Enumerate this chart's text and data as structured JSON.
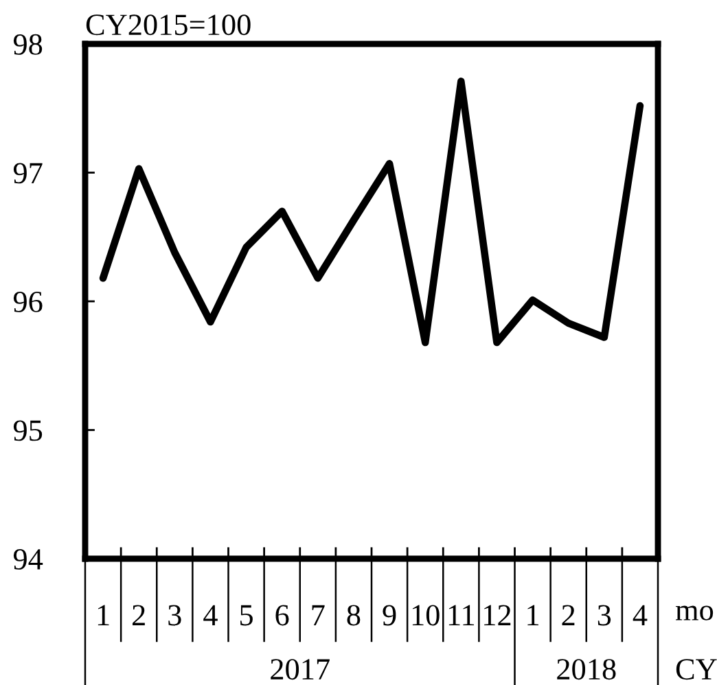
{
  "chart_data": {
    "type": "line",
    "categories": [
      "1",
      "2",
      "3",
      "4",
      "5",
      "6",
      "7",
      "8",
      "9",
      "10",
      "11",
      "12",
      "1",
      "2",
      "3",
      "4"
    ],
    "series": [
      {
        "color": "#000000",
        "values": [
          96.18,
          97.03,
          96.38,
          95.84,
          96.42,
          96.7,
          96.18,
          96.63,
          97.07,
          95.68,
          97.71,
          95.68,
          96.01,
          95.83,
          95.72,
          97.52
        ]
      }
    ],
    "ylim": [
      94,
      98
    ],
    "yticks": [
      94,
      95,
      96,
      97,
      98
    ],
    "annotations": [
      "CY2015=100",
      "mo",
      "CY",
      "2017",
      "2018"
    ],
    "grid": false,
    "legend": false,
    "marker": "none",
    "line_style": "solid"
  }
}
